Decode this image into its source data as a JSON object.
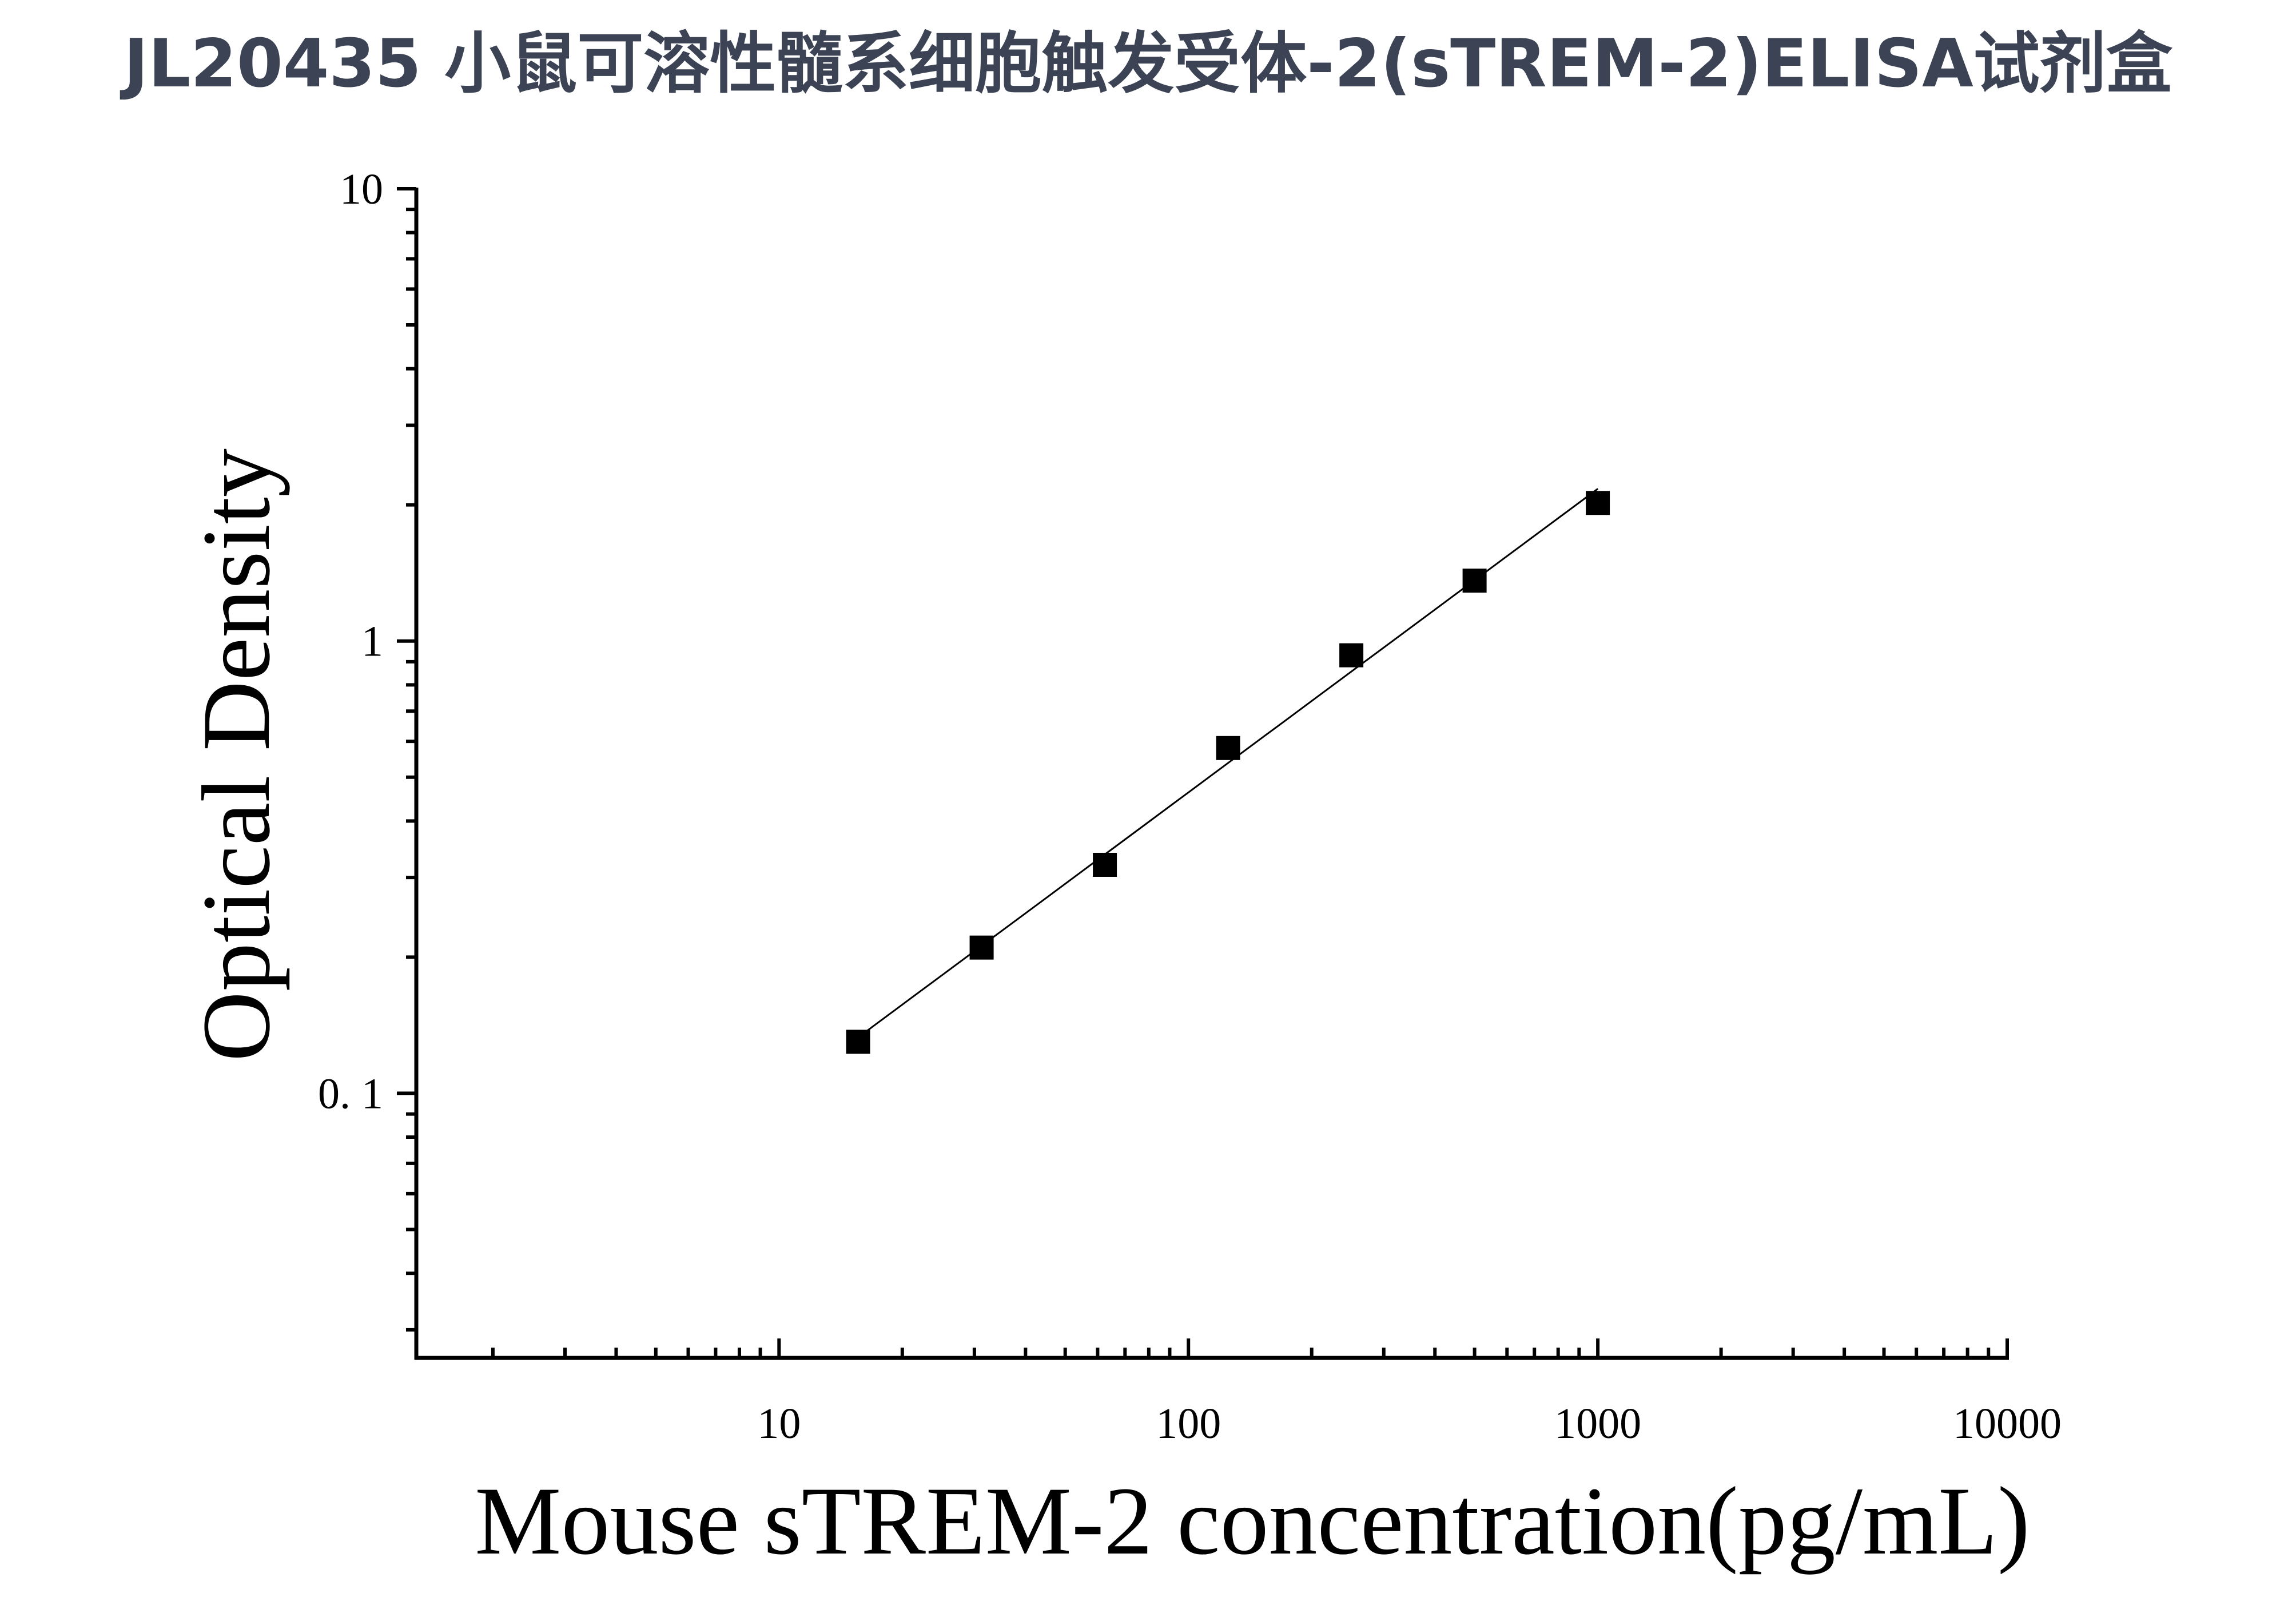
{
  "chart_data": {
    "type": "scatter",
    "title": "JL20435 小鼠可溶性髓系细胞触发受体-2(sTREM-2)ELISA试剂盒",
    "xlabel": "Mouse sTREM-2 concentration(pg/mL)",
    "ylabel": "Optical Density",
    "x_scale": "log",
    "y_scale": "log",
    "xlim": [
      1.3,
      10000
    ],
    "ylim": [
      0.026,
      10
    ],
    "x_ticks": [
      10,
      100,
      1000,
      10000
    ],
    "x_tick_labels": [
      "10",
      "100",
      "1000",
      "10000"
    ],
    "y_ticks": [
      0.1,
      1,
      10
    ],
    "y_tick_labels": [
      "0. 1",
      "1",
      "10"
    ],
    "grid": false,
    "legend": "none",
    "marker": "square",
    "fit_line": true,
    "colors": {
      "marker": "#000000",
      "line": "#000000",
      "title": "#3b4354"
    },
    "series": [
      {
        "x": [
          15.6,
          31.25,
          62.5,
          125,
          250,
          500,
          1000
        ],
        "y": [
          0.13,
          0.21,
          0.32,
          0.58,
          0.93,
          1.36,
          2.02
        ]
      }
    ]
  }
}
